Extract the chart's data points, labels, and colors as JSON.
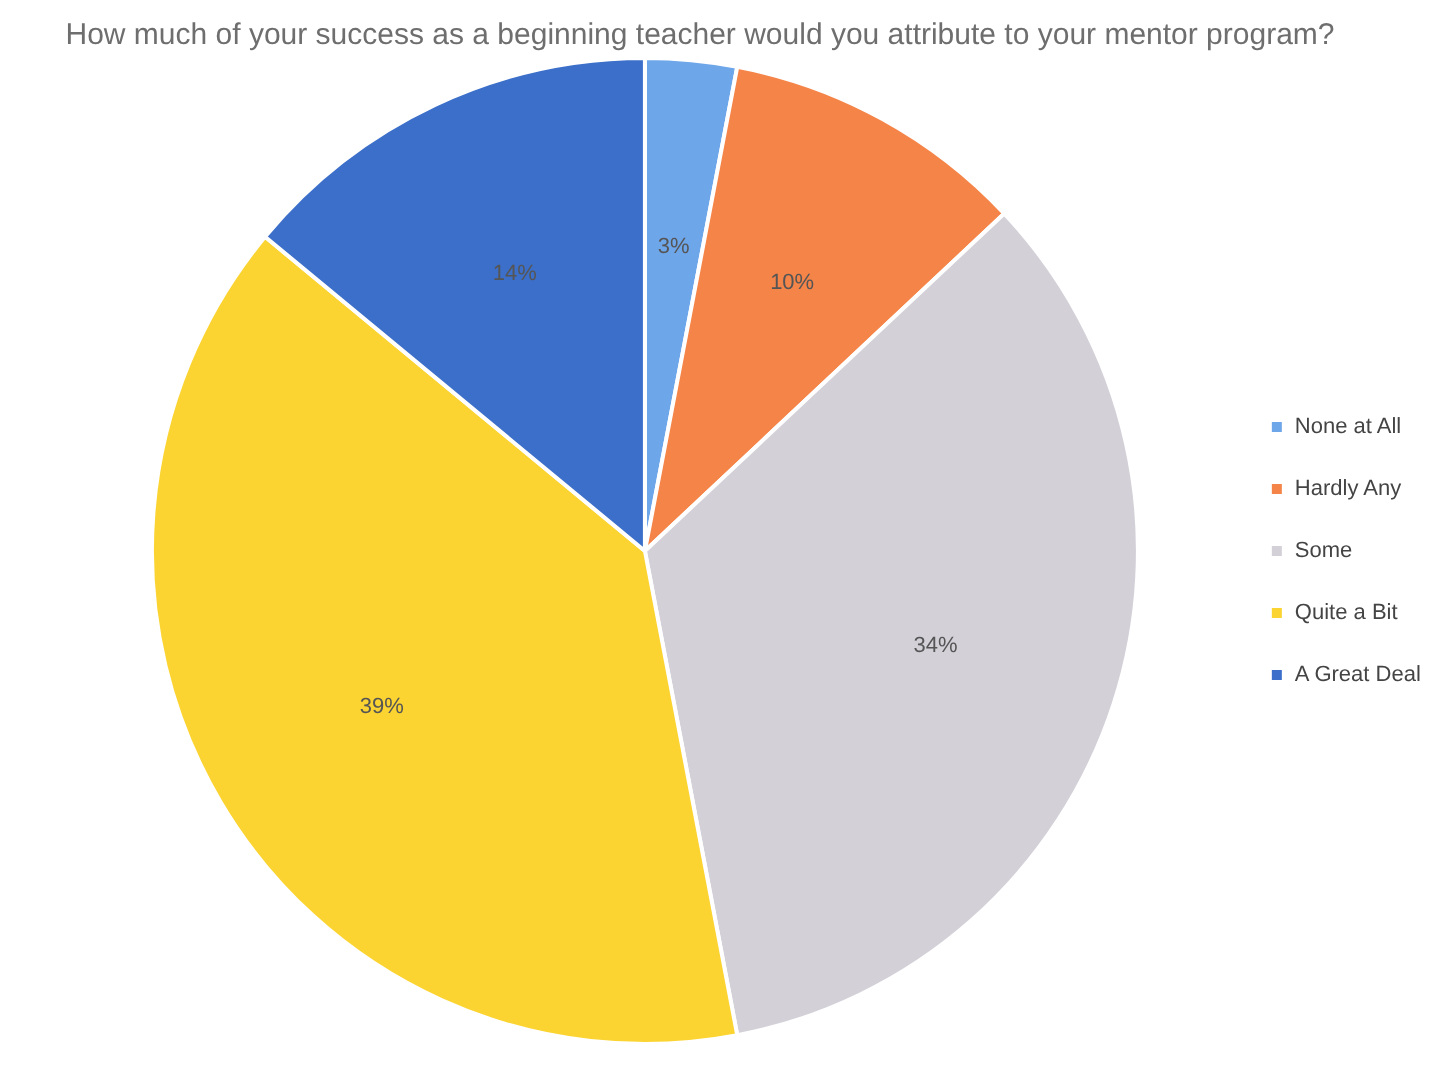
{
  "chart_data": {
    "type": "pie",
    "title": "How much of your success as a beginning teacher would you attribute to your mentor program?",
    "categories": [
      "None at All",
      "Hardly Any",
      "Some",
      "Quite a Bit",
      "A Great Deal"
    ],
    "values": [
      3,
      10,
      34,
      39,
      14
    ],
    "colors": [
      "#6ea6ea",
      "#f58448",
      "#d3d0d8",
      "#fbd431",
      "#3b6fc9"
    ],
    "value_labels": [
      "3%",
      "10%",
      "34%",
      "39%",
      "14%"
    ],
    "legend": "right"
  }
}
